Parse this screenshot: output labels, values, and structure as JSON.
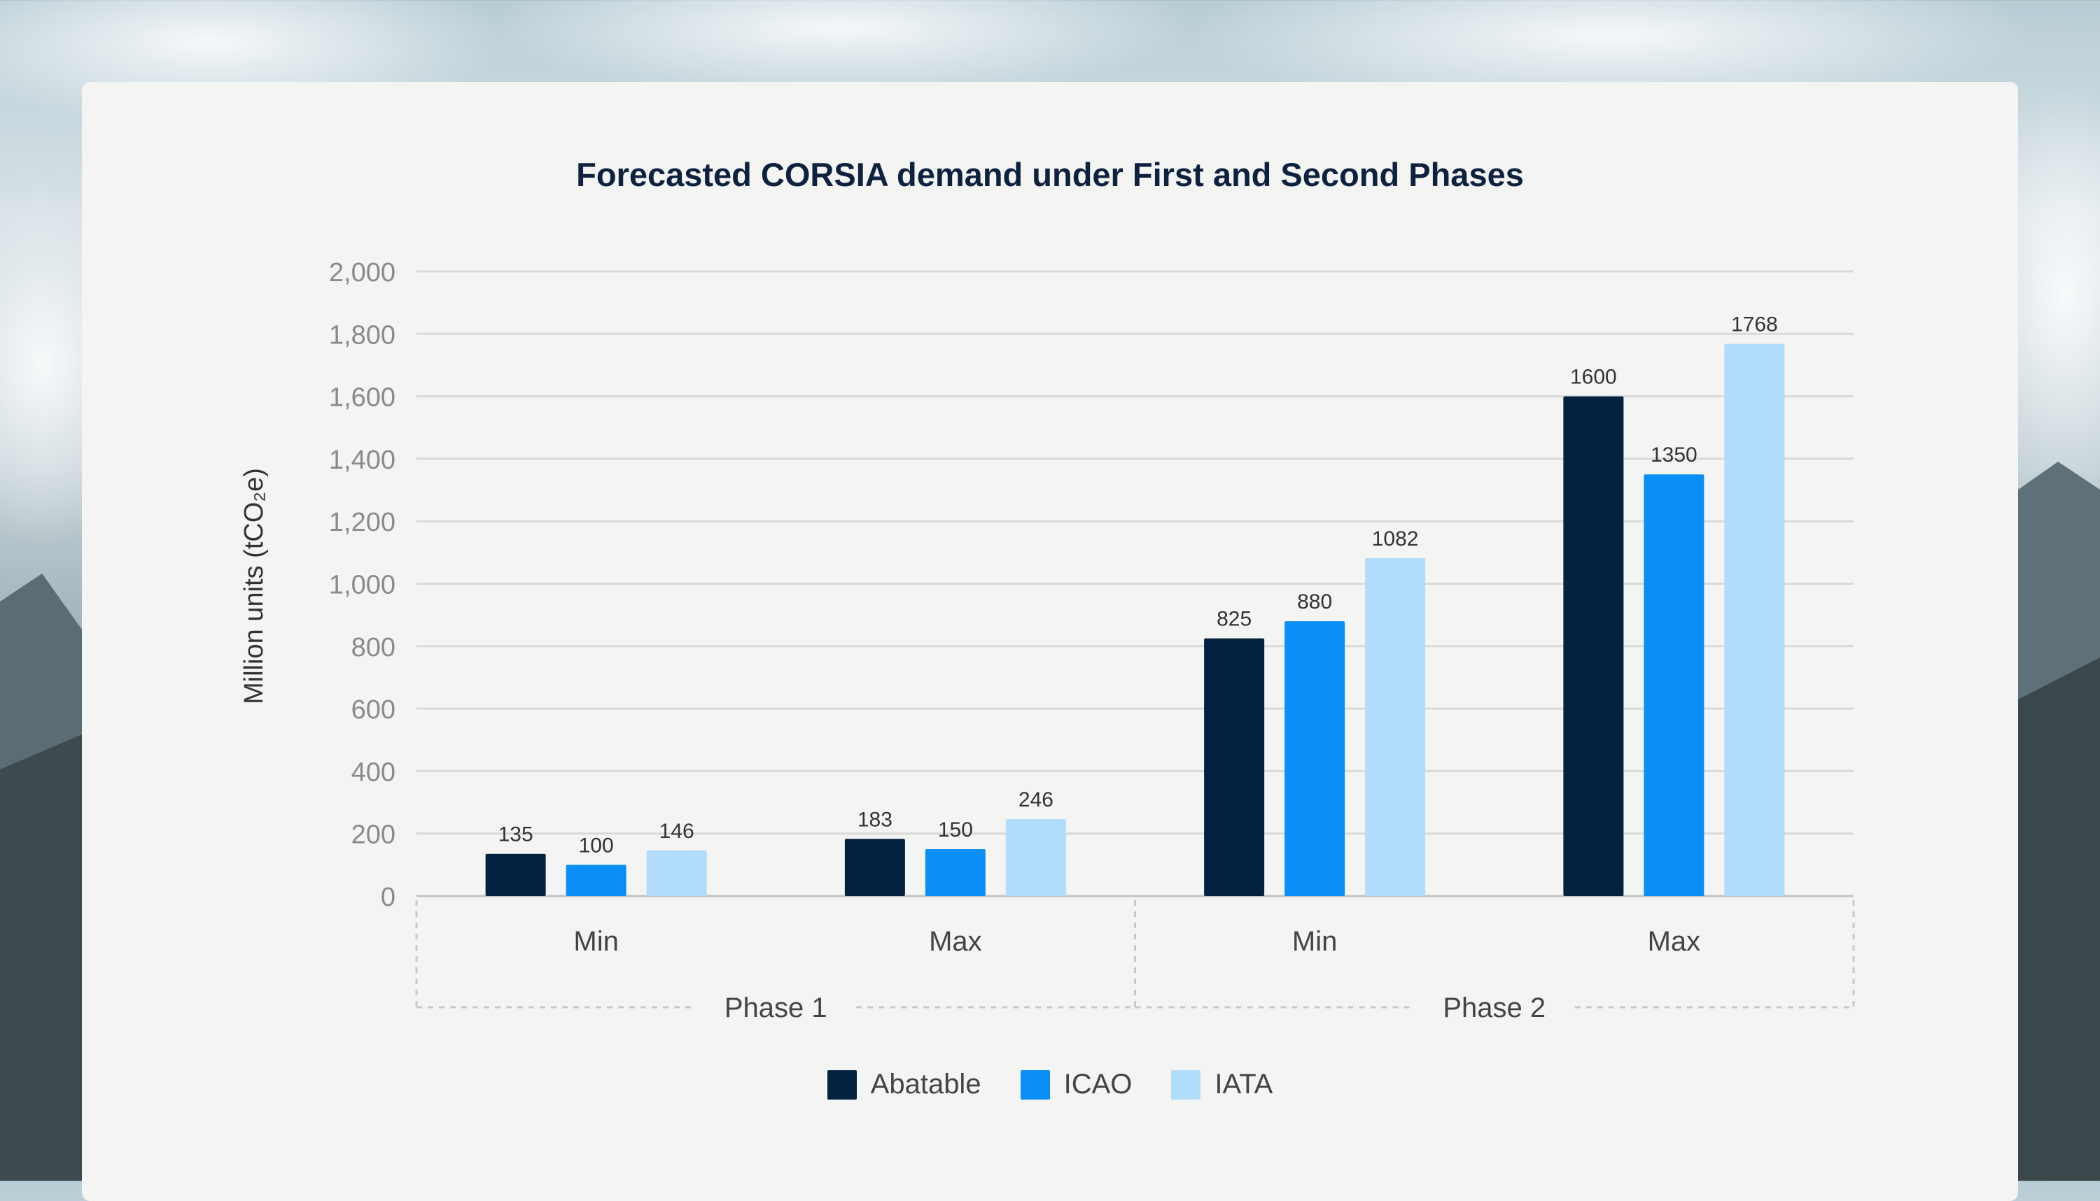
{
  "chart_data": {
    "type": "bar",
    "title": "Forecasted CORSIA demand under First and Second Phases",
    "ylabel": "Million units (tCO₂e)",
    "xlabel": "",
    "ylim": [
      0,
      2000
    ],
    "yticks": [
      "0",
      "200",
      "400",
      "600",
      "800",
      "1,000",
      "1,200",
      "1,400",
      "1,600",
      "1,800",
      "2,000"
    ],
    "grid": true,
    "legend_position": "bottom-center",
    "categories": [
      "Min",
      "Max",
      "Min",
      "Max"
    ],
    "groups": [
      {
        "label": "Phase 1",
        "categories": [
          "Min",
          "Max"
        ]
      },
      {
        "label": "Phase 2",
        "categories": [
          "Min",
          "Max"
        ]
      }
    ],
    "series": [
      {
        "name": "Abatable",
        "color": "#03223f",
        "values": [
          135,
          183,
          825,
          1600
        ],
        "labels": [
          "135",
          "183",
          "825",
          "1600"
        ]
      },
      {
        "name": "ICAO",
        "color": "#0a8ef7",
        "values": [
          100,
          150,
          880,
          1350
        ],
        "labels": [
          "100",
          "150",
          "880",
          "1350"
        ]
      },
      {
        "name": "IATA",
        "color": "#b2dcfb",
        "values": [
          146,
          246,
          1082,
          1768
        ],
        "labels": [
          "146",
          "246",
          "1082",
          "1768"
        ]
      }
    ]
  }
}
